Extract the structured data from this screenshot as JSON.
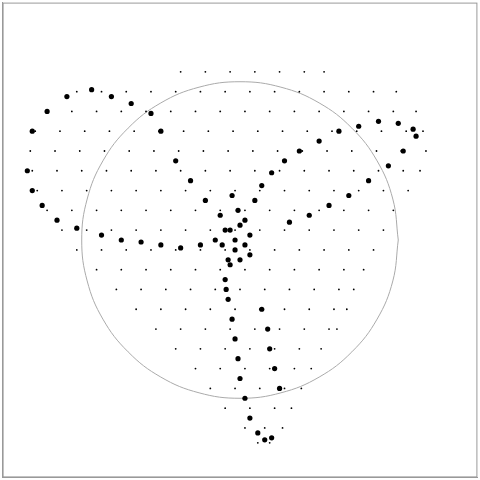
{
  "chart_data": {
    "type": "scatter",
    "xlim": [
      0,
      480
    ],
    "ylim": [
      0,
      480
    ],
    "tick_labels": false,
    "grid": false,
    "series": [
      {
        "type": "scatter",
        "marker": "pixel",
        "color": "#000000",
        "x": [
          180,
          205,
          230,
          255,
          280,
          305,
          325,
          75,
          100,
          125,
          150,
          175,
          200,
          225,
          250,
          275,
          300,
          325,
          350,
          375,
          398,
          45,
          70,
          95,
          120,
          145,
          170,
          195,
          220,
          245,
          270,
          295,
          320,
          345,
          370,
          395,
          418,
          33,
          58,
          83,
          108,
          133,
          158,
          183,
          208,
          233,
          258,
          283,
          308,
          333,
          358,
          383,
          408,
          425,
          28,
          53,
          78,
          103,
          128,
          153,
          178,
          203,
          228,
          253,
          278,
          303,
          328,
          353,
          378,
          403,
          428,
          30,
          55,
          80,
          105,
          130,
          155,
          180,
          205,
          230,
          255,
          280,
          305,
          330,
          355,
          380,
          405,
          422,
          35,
          60,
          85,
          110,
          135,
          160,
          185,
          210,
          235,
          260,
          285,
          310,
          335,
          360,
          385,
          410,
          45,
          70,
          95,
          120,
          145,
          170,
          195,
          220,
          245,
          270,
          295,
          320,
          345,
          370,
          395,
          60,
          85,
          110,
          135,
          160,
          185,
          210,
          235,
          260,
          285,
          310,
          335,
          360,
          385,
          75,
          100,
          125,
          150,
          175,
          200,
          225,
          250,
          275,
          300,
          325,
          350,
          375,
          95,
          120,
          145,
          170,
          195,
          220,
          245,
          270,
          295,
          320,
          345,
          365,
          115,
          140,
          165,
          190,
          215,
          240,
          265,
          290,
          315,
          340,
          355,
          135,
          160,
          185,
          210,
          235,
          260,
          285,
          310,
          335,
          348,
          155,
          180,
          205,
          230,
          255,
          280,
          305,
          330,
          338,
          175,
          200,
          225,
          250,
          275,
          300,
          322,
          195,
          220,
          245,
          270,
          295,
          312,
          210,
          235,
          260,
          285,
          302,
          225,
          250,
          275,
          292,
          245,
          265,
          283,
          258,
          270
        ],
        "values": [
          410,
          410,
          410,
          410,
          410,
          410,
          410,
          390,
          390,
          390,
          390,
          390,
          390,
          390,
          390,
          390,
          390,
          390,
          390,
          390,
          390,
          370,
          370,
          370,
          370,
          370,
          370,
          370,
          370,
          370,
          370,
          370,
          370,
          370,
          370,
          370,
          370,
          350,
          350,
          350,
          350,
          350,
          350,
          350,
          350,
          350,
          350,
          350,
          350,
          350,
          350,
          350,
          350,
          350,
          330,
          330,
          330,
          330,
          330,
          330,
          330,
          330,
          330,
          330,
          330,
          330,
          330,
          330,
          330,
          330,
          330,
          310,
          310,
          310,
          310,
          310,
          310,
          310,
          310,
          310,
          310,
          310,
          310,
          310,
          310,
          310,
          310,
          310,
          290,
          290,
          290,
          290,
          290,
          290,
          290,
          290,
          290,
          290,
          290,
          290,
          290,
          290,
          290,
          290,
          270,
          270,
          270,
          270,
          270,
          270,
          270,
          270,
          270,
          270,
          270,
          270,
          270,
          270,
          270,
          250,
          250,
          250,
          250,
          250,
          250,
          250,
          250,
          250,
          250,
          250,
          250,
          250,
          250,
          230,
          230,
          230,
          230,
          230,
          230,
          230,
          230,
          230,
          230,
          230,
          230,
          230,
          210,
          210,
          210,
          210,
          210,
          210,
          210,
          210,
          210,
          210,
          210,
          210,
          190,
          190,
          190,
          190,
          190,
          190,
          190,
          190,
          190,
          190,
          190,
          170,
          170,
          170,
          170,
          170,
          170,
          170,
          170,
          170,
          170,
          150,
          150,
          150,
          150,
          150,
          150,
          150,
          150,
          150,
          130,
          130,
          130,
          130,
          130,
          130,
          130,
          110,
          110,
          110,
          110,
          110,
          110,
          90,
          90,
          90,
          90,
          90,
          70,
          70,
          70,
          70,
          50,
          50,
          50,
          35,
          35
        ]
      },
      {
        "type": "scatter",
        "marker": "circle",
        "color": "#000000",
        "x": [
          25,
          30,
          45,
          65,
          90,
          110,
          130,
          150,
          160,
          175,
          190,
          205,
          220,
          230,
          235,
          228,
          225,
          228,
          232,
          235,
          238,
          240,
          245,
          250,
          258,
          265,
          272,
          245,
          255,
          262,
          272,
          285,
          300,
          320,
          340,
          360,
          380,
          400,
          415,
          418,
          405,
          390,
          370,
          350,
          330,
          310,
          290,
          30,
          40,
          55,
          75,
          100,
          120,
          140,
          160,
          180,
          200,
          215,
          262,
          268,
          270,
          275,
          280,
          225,
          240,
          235,
          245,
          222,
          230,
          240,
          250,
          238,
          232,
          250,
          226
        ],
        "values": [
          310,
          350,
          370,
          385,
          392,
          385,
          378,
          368,
          350,
          320,
          300,
          280,
          265,
          250,
          240,
          220,
          200,
          180,
          160,
          140,
          120,
          100,
          80,
          60,
          45,
          38,
          40,
          260,
          280,
          295,
          308,
          320,
          330,
          340,
          350,
          355,
          360,
          358,
          352,
          345,
          330,
          315,
          300,
          285,
          275,
          265,
          258,
          290,
          275,
          260,
          252,
          245,
          240,
          238,
          235,
          232,
          235,
          240,
          170,
          150,
          130,
          110,
          90,
          250,
          255,
          230,
          235,
          235,
          215,
          220,
          245,
          270,
          285,
          225,
          190
        ]
      },
      {
        "type": "line",
        "marker": "none",
        "line_style": "solid",
        "color": "#aaaaaa",
        "x": [
          400,
          394.5,
          378.6,
          353.1,
          320,
          281.4,
          240,
          198.6,
          160,
          126.9,
          101.4,
          85.5,
          80,
          85.5,
          101.4,
          126.9,
          160,
          198.6,
          240,
          281.4,
          320,
          353.1,
          378.6,
          394.5,
          400
        ],
        "values": [
          240,
          281.4,
          320,
          353.1,
          378.6,
          394.5,
          400,
          394.5,
          378.6,
          353.1,
          320,
          281.4,
          240,
          198.6,
          160,
          126.9,
          101.4,
          85.5,
          80,
          85.5,
          101.4,
          126.9,
          160,
          198.6,
          240
        ]
      }
    ]
  }
}
